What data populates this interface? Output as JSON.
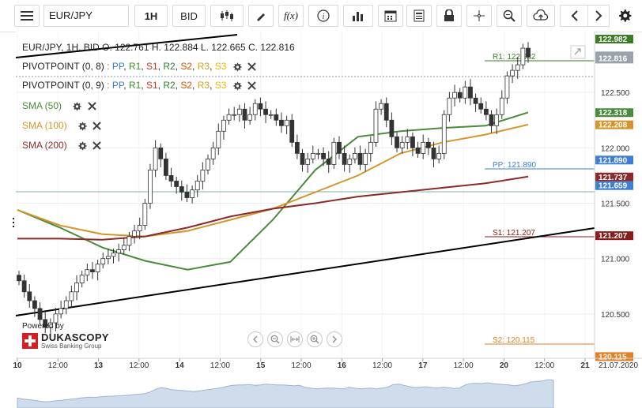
{
  "toolbar": {
    "symbol": "EUR/JPY",
    "timeframe": "1H",
    "price_side": "BID",
    "fx_label": "f(x)"
  },
  "header": {
    "ohlc_line": "EUR/JPY, 1H, BID   O. 122.761 H. 122.884 L. 122.665 C. 122.816"
  },
  "indicators": [
    {
      "name": "PIVOTPOINT (0, 8)",
      "levels": [
        "PP",
        "R1",
        "S1",
        "R2",
        "S2",
        "R3",
        "S3"
      ]
    },
    {
      "name": "PIVOTPOINT (0, 9)",
      "levels": [
        "PP",
        "R1",
        "S1",
        "R2",
        "S2",
        "R3",
        "S3"
      ]
    },
    {
      "name": "SMA (50)",
      "color": "#4a8a3c"
    },
    {
      "name": "SMA (100)",
      "color": "#d4952a"
    },
    {
      "name": "SMA (200)",
      "color": "#8b2a2a"
    }
  ],
  "level_colors": {
    "PP": "#3d7fd6",
    "R1": "#3c8c2a",
    "S1": "#c0392b",
    "R2": "#2e7d32",
    "S2": "#d35400",
    "R3": "#d4a017",
    "S3": "#e6b800"
  },
  "pivot_labels": {
    "r1": "R1: 122.982",
    "pp": "PP: 121.890",
    "s1": "S1: 121.207",
    "s2": "S2: 120.115"
  },
  "price_tags": [
    {
      "text": "122.982",
      "color": "#3c7a2a"
    },
    {
      "text": "122.816",
      "color": "#9aa3ad"
    },
    {
      "text": "122.318",
      "color": "#4a8a3c"
    },
    {
      "text": "122.208",
      "color": "#d4952a"
    },
    {
      "text": "121.890",
      "color": "#3d7fd6"
    },
    {
      "text": "121.737",
      "color": "#8b2a2a"
    },
    {
      "text": "121.659",
      "color": "#3d7fd6"
    },
    {
      "text": "121.207",
      "color": "#8b1a1a"
    },
    {
      "text": "120.115",
      "color": "#e67e22"
    }
  ],
  "logo": {
    "powered": "Powered by",
    "brand": "DUKASCOPY",
    "sub": "Swiss Banking Group"
  },
  "chart_data": {
    "type": "candlestick",
    "symbol": "EUR/JPY",
    "interval": "1H",
    "y_ticks": [
      120.5,
      121.0,
      121.5,
      122.0,
      122.5
    ],
    "y_tick_labels": [
      "120.500",
      "121.000",
      "121.500",
      "122.000",
      "122.500"
    ],
    "ylim": [
      120.1,
      123.05
    ],
    "x_ticks": [
      "10",
      "12:00",
      "13",
      "12:00",
      "14",
      "12:00",
      "15",
      "12:00",
      "16",
      "12:00",
      "17",
      "12:00",
      "20",
      "12:00",
      "21"
    ],
    "x_end_label": "21.07.2020",
    "last_close": 122.816,
    "pivot_levels": {
      "R1": 122.982,
      "PP": 121.89,
      "S1": 121.207,
      "S2": 120.115
    },
    "series": [
      {
        "name": "SMA (50)",
        "values": [
          121.44,
          121.28,
          121.1,
          120.98,
          120.9,
          120.97,
          121.35,
          121.8,
          122.1,
          122.15,
          122.18,
          122.2,
          122.32
        ]
      },
      {
        "name": "SMA (100)",
        "values": [
          121.44,
          121.3,
          121.22,
          121.2,
          121.25,
          121.35,
          121.45,
          121.6,
          121.75,
          121.95,
          122.05,
          122.12,
          122.21
        ]
      },
      {
        "name": "SMA (200)",
        "values": [
          121.18,
          121.18,
          121.17,
          121.2,
          121.28,
          121.38,
          121.45,
          121.5,
          121.56,
          121.6,
          121.64,
          121.68,
          121.74
        ]
      }
    ],
    "closes": [
      120.8,
      120.7,
      120.62,
      120.55,
      120.45,
      120.38,
      120.42,
      120.5,
      120.55,
      120.62,
      120.7,
      120.78,
      120.85,
      120.9,
      120.88,
      120.95,
      121.0,
      121.02,
      121.05,
      121.08,
      121.12,
      121.2,
      121.25,
      121.3,
      121.5,
      121.8,
      122.0,
      121.9,
      121.75,
      121.7,
      121.65,
      121.6,
      121.55,
      121.62,
      121.7,
      121.8,
      121.9,
      122.0,
      122.15,
      122.25,
      122.3,
      122.3,
      122.35,
      122.25,
      122.3,
      122.4,
      122.35,
      122.3,
      122.3,
      122.25,
      122.2,
      122.25,
      122.05,
      121.95,
      121.85,
      121.9,
      121.95,
      121.95,
      121.9,
      121.85,
      122.05,
      121.95,
      121.85,
      121.9,
      121.95,
      121.85,
      121.95,
      122.05,
      122.35,
      122.4,
      122.25,
      122.1,
      122.0,
      122.05,
      122.1,
      122.0,
      121.95,
      122.05,
      122.0,
      121.9,
      121.95,
      122.3,
      122.45,
      122.5,
      122.45,
      122.55,
      122.45,
      122.4,
      122.35,
      122.3,
      122.2,
      122.3,
      122.45,
      122.65,
      122.7,
      122.75,
      122.9,
      122.82
    ]
  }
}
